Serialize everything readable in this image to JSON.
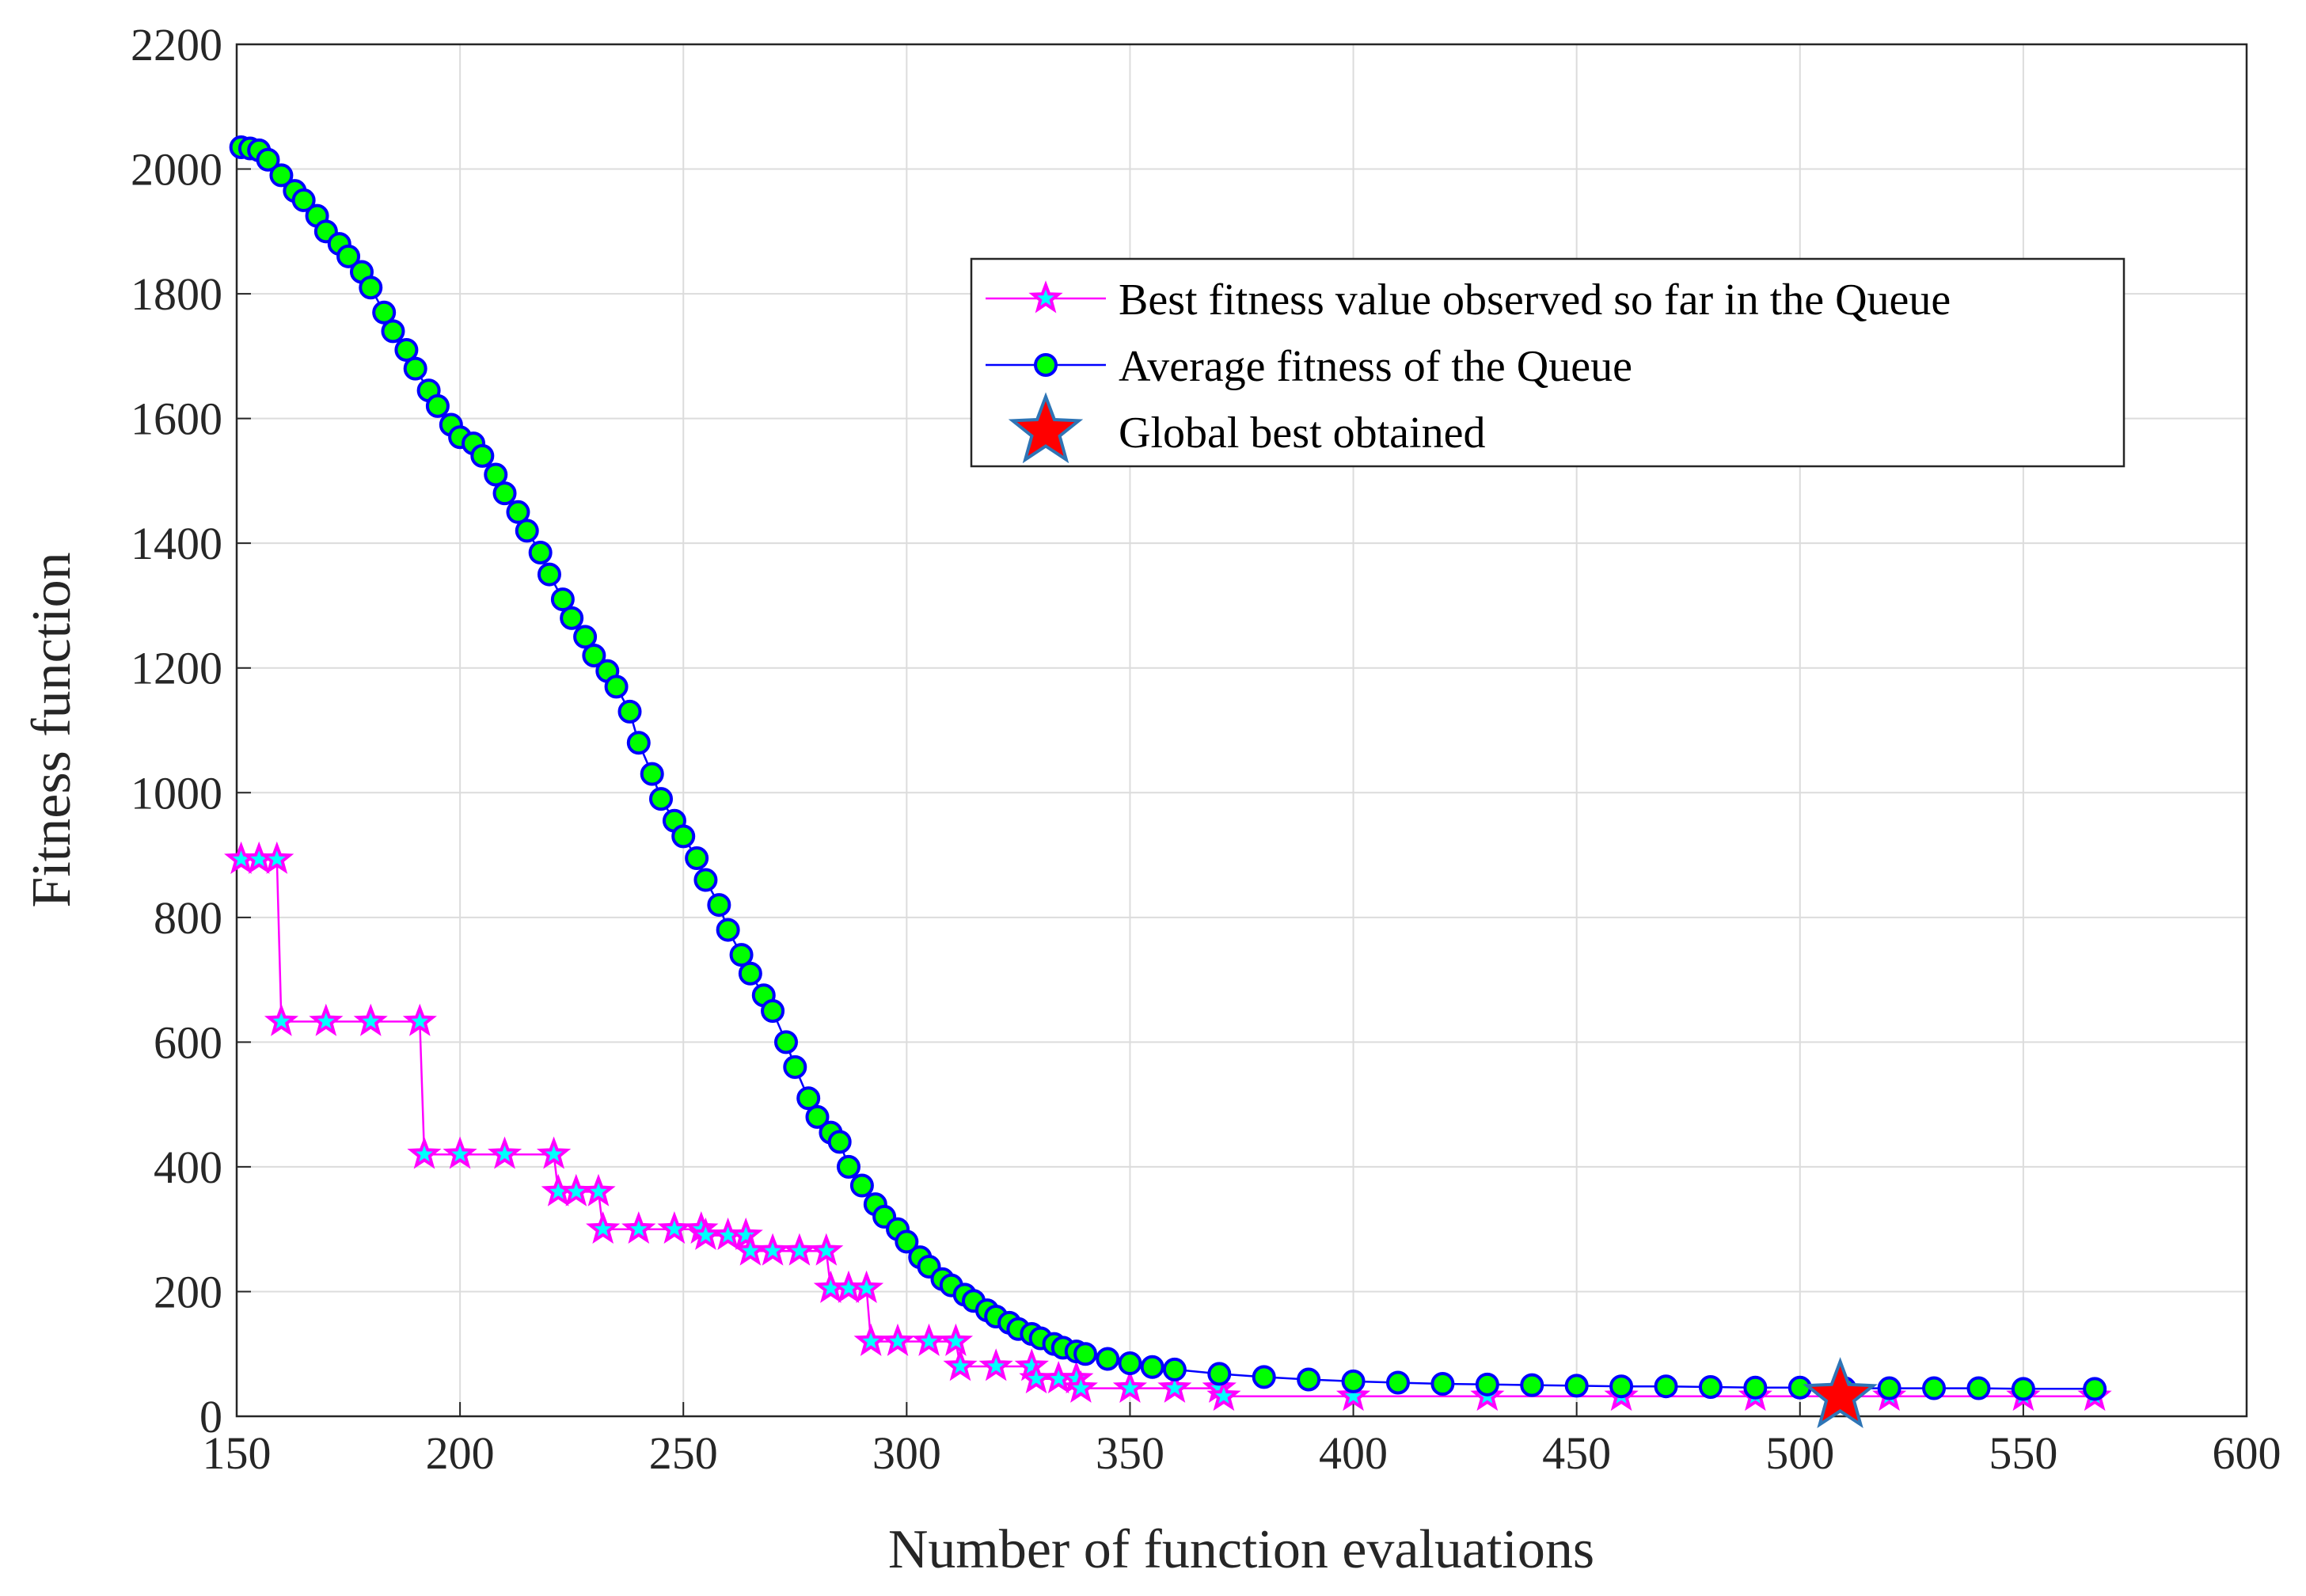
{
  "chart_data": {
    "type": "line",
    "xlabel": "Number of function evaluations",
    "ylabel": "Fitness function",
    "xlim": [
      150,
      600
    ],
    "xticks": [
      150,
      200,
      250,
      300,
      350,
      400,
      450,
      500,
      550,
      600
    ],
    "ylim": [
      0,
      2200
    ],
    "yticks": [
      0,
      200,
      400,
      600,
      800,
      1000,
      1200,
      1400,
      1600,
      1800,
      2000,
      2200
    ],
    "grid": true,
    "series": [
      {
        "name": "Best fitness value observed so far in the Queue",
        "color": "#ff00ff",
        "marker": "star",
        "marker_fill": "#00ffff",
        "x": [
          151,
          155,
          159,
          160,
          170,
          180,
          191,
          192,
          200,
          210,
          221,
          222,
          226,
          231,
          232,
          240,
          248,
          254,
          255,
          260,
          264,
          265,
          270,
          276,
          282,
          283,
          287,
          291,
          292,
          298,
          305,
          311,
          312,
          320,
          328,
          329,
          334,
          338,
          339,
          350,
          360,
          370,
          371,
          400,
          430,
          460,
          490,
          520,
          550,
          566
        ],
        "values": [
          893,
          893,
          893,
          633,
          633,
          633,
          633,
          420,
          420,
          420,
          420,
          360,
          360,
          360,
          300,
          300,
          300,
          300,
          290,
          290,
          290,
          265,
          265,
          265,
          265,
          205,
          205,
          205,
          120,
          120,
          120,
          120,
          80,
          80,
          80,
          60,
          60,
          60,
          45,
          45,
          45,
          45,
          32,
          32,
          32,
          32,
          32,
          32,
          32,
          32
        ]
      },
      {
        "name": "Average fitness of the Queue",
        "color": "#0000ff",
        "marker": "circle",
        "marker_fill": "#00ff00",
        "x": [
          151,
          153,
          155,
          157,
          160,
          163,
          165,
          168,
          170,
          173,
          175,
          178,
          180,
          183,
          185,
          188,
          190,
          193,
          195,
          198,
          200,
          203,
          205,
          208,
          210,
          213,
          215,
          218,
          220,
          223,
          225,
          228,
          230,
          233,
          235,
          238,
          240,
          243,
          245,
          248,
          250,
          253,
          255,
          258,
          260,
          263,
          265,
          268,
          270,
          273,
          275,
          278,
          280,
          283,
          285,
          287,
          290,
          293,
          295,
          298,
          300,
          303,
          305,
          308,
          310,
          313,
          315,
          318,
          320,
          323,
          325,
          328,
          330,
          333,
          335,
          338,
          340,
          345,
          350,
          355,
          360,
          370,
          380,
          390,
          400,
          410,
          420,
          430,
          440,
          450,
          460,
          470,
          480,
          490,
          500,
          510,
          520,
          530,
          540,
          550,
          566
        ],
        "values": [
          2035,
          2033,
          2030,
          2015,
          1990,
          1965,
          1950,
          1925,
          1900,
          1880,
          1860,
          1835,
          1810,
          1770,
          1740,
          1710,
          1680,
          1645,
          1620,
          1590,
          1570,
          1560,
          1540,
          1510,
          1480,
          1450,
          1420,
          1385,
          1350,
          1310,
          1280,
          1250,
          1220,
          1195,
          1170,
          1130,
          1080,
          1030,
          990,
          955,
          930,
          895,
          860,
          820,
          780,
          740,
          710,
          675,
          650,
          600,
          560,
          510,
          480,
          455,
          440,
          400,
          370,
          340,
          320,
          300,
          280,
          255,
          240,
          220,
          210,
          195,
          185,
          170,
          160,
          150,
          140,
          132,
          125,
          116,
          110,
          104,
          100,
          92,
          85,
          79,
          75,
          68,
          63,
          59,
          56,
          54,
          52,
          51,
          50,
          49,
          48,
          48,
          47,
          46,
          46,
          45,
          45,
          45,
          45,
          44,
          44
        ]
      },
      {
        "name": "Global best obtained",
        "color": "#ff0000",
        "marker": "bigstar",
        "marker_stroke": "#2e75b6",
        "line": false,
        "x": [
          509
        ],
        "values": [
          32
        ]
      }
    ]
  }
}
